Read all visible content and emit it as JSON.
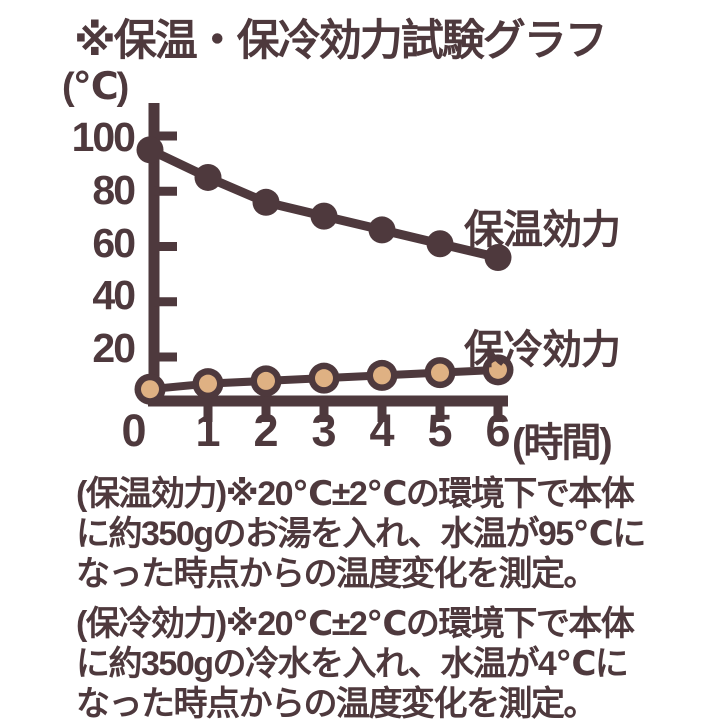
{
  "colors": {
    "ink": "#4e393d",
    "marker_fill": "#dfb183",
    "background": "#ffffff"
  },
  "chart_data": {
    "type": "line",
    "title": "※保温・保冷効力試験グラフ",
    "xlabel": "(時間)",
    "ylabel": "(℃)",
    "x": [
      0,
      1,
      2,
      3,
      4,
      5,
      6
    ],
    "xticks": [
      0,
      1,
      2,
      3,
      4,
      5,
      6
    ],
    "yticks": [
      100,
      80,
      60,
      40,
      20
    ],
    "xlim": [
      0,
      6
    ],
    "ylim": [
      0,
      110
    ],
    "grid": false,
    "legend_position": "inline-right-of-lines",
    "series": [
      {
        "name": "保温効力",
        "marker": "filled-circle",
        "values": [
          95,
          85,
          76,
          71,
          66,
          61,
          56
        ]
      },
      {
        "name": "保冷効力",
        "marker": "open-circle",
        "values": [
          4,
          6,
          7,
          8,
          9,
          10,
          11
        ]
      }
    ]
  },
  "notes": [
    {
      "id": "hot",
      "lines": [
        "(保温効力)※20℃±2℃の環境下で本体",
        "に約350gのお湯を入れ、水温が95℃に",
        "なった時点からの温度変化を測定。"
      ]
    },
    {
      "id": "cold",
      "lines": [
        "(保冷効力)※20℃±2℃の環境下で本体",
        "に約350gの冷水を入れ、水温が4℃に",
        "なった時点からの温度変化を測定。"
      ]
    }
  ]
}
